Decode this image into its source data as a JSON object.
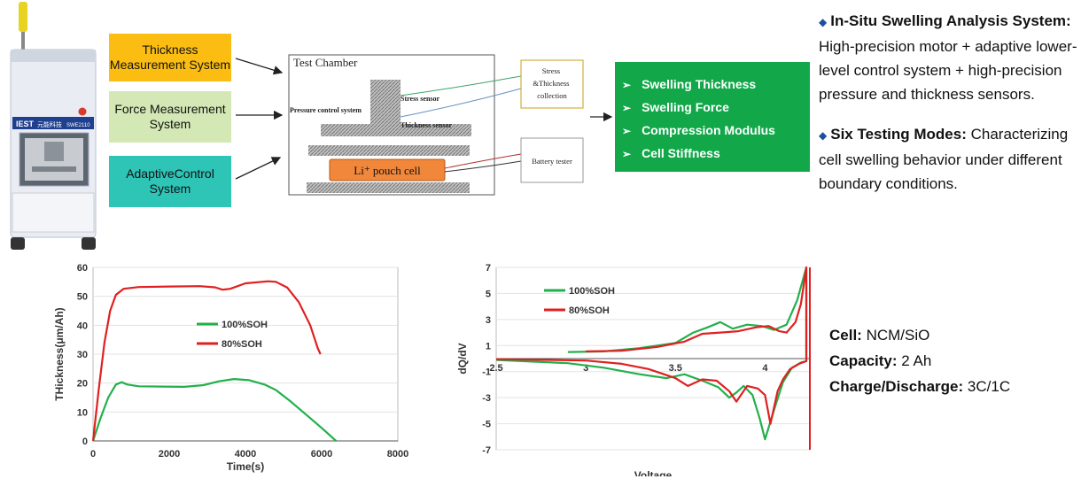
{
  "device": {
    "brand": "IEST",
    "brand_cn": "元能科技",
    "model": "SWE2110"
  },
  "systems": [
    {
      "label": "Thickness Measurement System",
      "color": "#fbbd12"
    },
    {
      "label": "Force Measurement System",
      "color": "#d3e8b4"
    },
    {
      "label": "AdaptiveControl System",
      "color": "#2ec4b6"
    }
  ],
  "chamber": {
    "title": "Test Chamber",
    "pressure_label": "Pressure control system",
    "stress_sensor": "Stress sensor",
    "thickness_sensor": "Thickness sensor",
    "cell_label": "Li⁺ pouch cell",
    "collection_label": "Stress &Thickness collection",
    "tester_label": "Battery tester"
  },
  "outputs": {
    "color": "#12a84a",
    "items": [
      "Swelling Thickness",
      "Swelling Force",
      "Compression Modulus",
      "Cell Stiffness"
    ]
  },
  "description": {
    "p1_bold": "In-Situ Swelling Analysis System:",
    "p1_text": " High-precision motor + adaptive lower-level control system + high-precision pressure and thickness sensors.",
    "p2_bold": "Six Testing Modes:",
    "p2_text": " Characterizing cell swelling behavior under different boundary conditions."
  },
  "cell_info": {
    "cell_label": "Cell:",
    "cell_value": "NCM/SiO",
    "capacity_label": "Capacity:",
    "capacity_value": "2 Ah",
    "rate_label": "Charge/Discharge:",
    "rate_value": "3C/1C"
  },
  "chart_data": [
    {
      "type": "line",
      "xlabel": "Time(s)",
      "ylabel": "THickness(μm/Ah)",
      "xlim": [
        0,
        8000
      ],
      "ylim": [
        0,
        60
      ],
      "xticks": [
        0,
        2000,
        4000,
        6000,
        8000
      ],
      "yticks": [
        0,
        10,
        20,
        30,
        40,
        50,
        60
      ],
      "grid": "horizontal",
      "legend": "center",
      "series": [
        {
          "name": "100%SOH",
          "color": "#22b04c",
          "points": [
            [
              0,
              0
            ],
            [
              200,
              8
            ],
            [
              400,
              15
            ],
            [
              600,
              19.5
            ],
            [
              750,
              20.3
            ],
            [
              900,
              19.5
            ],
            [
              1200,
              18.9
            ],
            [
              1800,
              18.8
            ],
            [
              2400,
              18.7
            ],
            [
              2900,
              19.3
            ],
            [
              3300,
              20.6
            ],
            [
              3700,
              21.4
            ],
            [
              4100,
              21.0
            ],
            [
              4500,
              19.5
            ],
            [
              4800,
              17.6
            ],
            [
              5200,
              13.5
            ],
            [
              5600,
              9.0
            ],
            [
              6000,
              4.5
            ],
            [
              6380,
              0
            ]
          ]
        },
        {
          "name": "80%SOH",
          "color": "#e02020",
          "points": [
            [
              0,
              0
            ],
            [
              150,
              18
            ],
            [
              300,
              34
            ],
            [
              450,
              45
            ],
            [
              600,
              50.5
            ],
            [
              800,
              52.6
            ],
            [
              1200,
              53.2
            ],
            [
              2000,
              53.4
            ],
            [
              2800,
              53.5
            ],
            [
              3200,
              53.1
            ],
            [
              3400,
              52.3
            ],
            [
              3600,
              52.6
            ],
            [
              4000,
              54.5
            ],
            [
              4600,
              55.2
            ],
            [
              4800,
              55.0
            ],
            [
              5100,
              53.0
            ],
            [
              5400,
              48.0
            ],
            [
              5700,
              40.0
            ],
            [
              5900,
              32.0
            ],
            [
              5970,
              30
            ]
          ]
        }
      ]
    },
    {
      "type": "line",
      "xlabel": "Voltage",
      "ylabel": "dQ/dV",
      "xlim": [
        2.5,
        4.25
      ],
      "ylim": [
        -7,
        7
      ],
      "xticks": [
        2.5,
        3,
        3.5,
        4
      ],
      "yticks": [
        -7,
        -5,
        -3,
        -1,
        1,
        3,
        5,
        7
      ],
      "grid": "horizontal",
      "legend": "upper-left",
      "series": [
        {
          "name": "100%SOH",
          "color": "#22b04c",
          "points": [
            [
              2.9,
              0.5
            ],
            [
              3.1,
              0.55
            ],
            [
              3.3,
              0.8
            ],
            [
              3.5,
              1.2
            ],
            [
              3.6,
              2.0
            ],
            [
              3.68,
              2.4
            ],
            [
              3.75,
              2.8
            ],
            [
              3.82,
              2.3
            ],
            [
              3.9,
              2.6
            ],
            [
              3.98,
              2.5
            ],
            [
              4.05,
              2.2
            ],
            [
              4.12,
              2.6
            ],
            [
              4.18,
              4.5
            ],
            [
              4.23,
              7
            ],
            [
              4.23,
              -0.2
            ],
            [
              4.2,
              -0.3
            ],
            [
              4.15,
              -0.7
            ],
            [
              4.1,
              -1.8
            ],
            [
              4.06,
              -3.5
            ],
            [
              4.0,
              -6.2
            ],
            [
              3.97,
              -4.6
            ],
            [
              3.93,
              -2.8
            ],
            [
              3.88,
              -2.1
            ],
            [
              3.84,
              -2.6
            ],
            [
              3.8,
              -3.0
            ],
            [
              3.74,
              -2.2
            ],
            [
              3.65,
              -1.7
            ],
            [
              3.55,
              -1.2
            ],
            [
              3.45,
              -1.5
            ],
            [
              3.3,
              -1.2
            ],
            [
              3.1,
              -0.7
            ],
            [
              2.9,
              -0.35
            ],
            [
              2.5,
              -0.1
            ]
          ]
        },
        {
          "name": "80%SOH",
          "color": "#e02020",
          "points": [
            [
              3.0,
              0.55
            ],
            [
              3.2,
              0.6
            ],
            [
              3.4,
              0.9
            ],
            [
              3.55,
              1.3
            ],
            [
              3.65,
              1.9
            ],
            [
              3.75,
              2.0
            ],
            [
              3.85,
              2.1
            ],
            [
              3.95,
              2.4
            ],
            [
              4.02,
              2.5
            ],
            [
              4.08,
              2.1
            ],
            [
              4.12,
              2.0
            ],
            [
              4.17,
              2.8
            ],
            [
              4.2,
              4.2
            ],
            [
              4.23,
              7
            ],
            [
              4.23,
              -0.2
            ],
            [
              4.19,
              -0.4
            ],
            [
              4.14,
              -0.8
            ],
            [
              4.1,
              -1.6
            ],
            [
              4.07,
              -2.5
            ],
            [
              4.03,
              -5.0
            ],
            [
              4.0,
              -2.8
            ],
            [
              3.96,
              -2.3
            ],
            [
              3.9,
              -2.1
            ],
            [
              3.84,
              -3.3
            ],
            [
              3.8,
              -2.5
            ],
            [
              3.73,
              -1.7
            ],
            [
              3.65,
              -1.6
            ],
            [
              3.57,
              -2.1
            ],
            [
              3.5,
              -1.5
            ],
            [
              3.35,
              -0.8
            ],
            [
              3.2,
              -0.4
            ],
            [
              3.0,
              -0.15
            ],
            [
              2.5,
              -0.05
            ]
          ]
        }
      ]
    }
  ]
}
